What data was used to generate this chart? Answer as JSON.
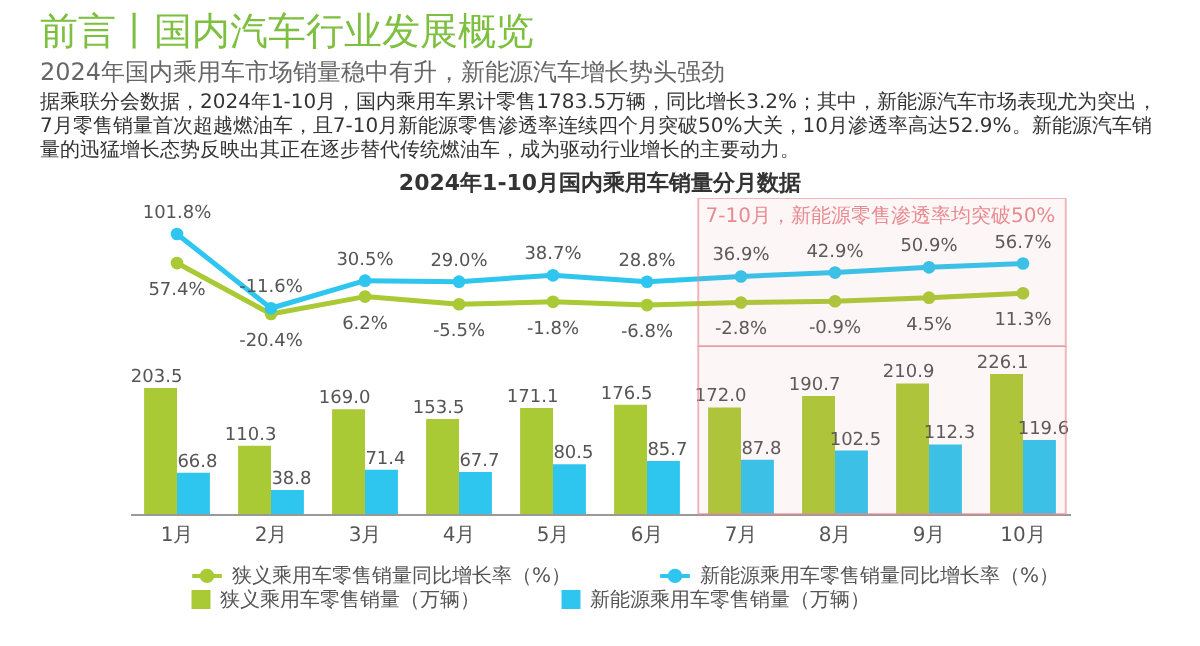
{
  "chart_data": [
    {
      "type": "line",
      "title": "前言丨国内汽车行业发展概览",
      "subtitle": "2024年国内乘用车市场销量稳中有升，新能源汽车增长势头强劲",
      "annotations": [
        "据乘联分会数据，2024年1-10月，国内乘用车累计零售1783.5万辆，同比增长3.2%；其中，新能源汽车市场表现尤为突出，7月零售销量首次超越燃油车，且7-10月新能源零售渗透率连续四个月突破50%大关，10月渗透率高达52.9%。新能源汽车销量的迅猛增长态势反映出其正在逐步替代传统燃油车，成为驱动行业增长的主要动力。",
        "2024年1-10月国内乘用车销量分月数据"
      ],
      "categories": [
        "1月",
        "2月",
        "3月",
        "4月",
        "5月",
        "6月",
        "7月",
        "8月",
        "9月",
        "10月"
      ],
      "series": [
        {
          "name": "狭义乘用车零售销量同比增长率（%）",
          "color": "#a9c935",
          "values": [
            57.4,
            -20.4,
            6.2,
            -5.5,
            -1.8,
            -6.8,
            -2.8,
            -0.9,
            4.5,
            11.3
          ],
          "value_labels": [
            "57.4%",
            "-20.4%",
            "6.2%",
            "-5.5%",
            "-1.8%",
            "-6.8%",
            "-2.8%",
            "-0.9%",
            "4.5%",
            "11.3%"
          ]
        },
        {
          "name": "新能源乘用车零售销量同比增长率（%）",
          "color": "#2ec5ee",
          "values": [
            101.8,
            -11.6,
            30.5,
            29.0,
            38.7,
            28.8,
            36.9,
            42.9,
            50.9,
            56.7
          ],
          "value_labels": [
            "101.8%",
            "-11.6%",
            "30.5%",
            "29.0%",
            "38.7%",
            "28.8%",
            "36.9%",
            "42.9%",
            "50.9%",
            "56.7%"
          ]
        }
      ],
      "bands": [
        {
          "axis": "x",
          "from": "7月",
          "to": "10月",
          "label": "7-10月，新能源零售渗透率均突破50%",
          "color": "#e88a90"
        }
      ],
      "grid": false,
      "tick_labels": false,
      "legend": "bottom",
      "marker": "circle",
      "line_style": "solid"
    },
    {
      "type": "bar",
      "categories": [
        "1月",
        "2月",
        "3月",
        "4月",
        "5月",
        "6月",
        "7月",
        "8月",
        "9月",
        "10月"
      ],
      "series": [
        {
          "name": "狭义乘用车零售销量（万辆）",
          "color": "#a9c935",
          "values": [
            203.5,
            110.3,
            169.0,
            153.5,
            171.1,
            176.5,
            172.0,
            190.7,
            210.9,
            226.1
          ],
          "value_labels": [
            "203.5",
            "110.3",
            "169.0",
            "153.5",
            "171.1",
            "176.5",
            "172.0",
            "190.7",
            "210.9",
            "226.1"
          ]
        },
        {
          "name": "新能源乘用车零售销量（万辆）",
          "color": "#2ec5ee",
          "values": [
            66.8,
            38.8,
            71.4,
            67.7,
            80.5,
            85.7,
            87.8,
            102.5,
            112.3,
            119.6
          ],
          "value_labels": [
            "66.8",
            "38.8",
            "71.4",
            "67.7",
            "80.5",
            "85.7",
            "87.8",
            "102.5",
            "112.3",
            "119.6"
          ]
        }
      ],
      "bands": [
        {
          "axis": "x",
          "from": "7月",
          "to": "10月",
          "color": "#e88a90"
        }
      ],
      "grid": false,
      "tick_labels": "x",
      "legend": "bottom"
    }
  ]
}
